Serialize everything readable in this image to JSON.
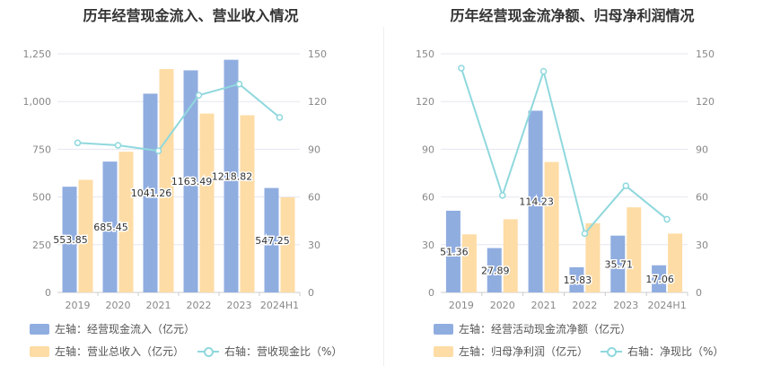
{
  "colors": {
    "bar_primary": "#90ade0",
    "bar_secondary": "#fedca5",
    "line": "#8fd8dd",
    "grid": "#e6e6f0"
  },
  "chart_data": [
    {
      "type": "bar",
      "title": "历年经营现金流入、营业收入情况",
      "categories": [
        "2019",
        "2020",
        "2021",
        "2022",
        "2023",
        "2024H1"
      ],
      "left_axis": {
        "ticks": [
          "0",
          "250",
          "500",
          "750",
          "1,000",
          "1,250"
        ],
        "ylim": [
          0,
          1250
        ]
      },
      "right_axis": {
        "ticks": [
          "0",
          "30",
          "60",
          "90",
          "120",
          "150"
        ],
        "ylim": [
          0,
          150
        ]
      },
      "series": [
        {
          "name": "左轴：经营现金流入（亿元）",
          "axis": "left",
          "kind": "bar",
          "values": [
            553.85,
            685.45,
            1041.26,
            1163.49,
            1218.82,
            547.25
          ],
          "labels": [
            "553.85",
            "685.45",
            "1041.26",
            "1163.49",
            "1218.82",
            "547.25"
          ]
        },
        {
          "name": "左轴：营业总收入（亿元）",
          "axis": "left",
          "kind": "bar",
          "values": [
            590,
            737,
            1170,
            937,
            928,
            498
          ]
        },
        {
          "name": "右轴：营收现金比（%）",
          "axis": "right",
          "kind": "line",
          "values": [
            94,
            92.5,
            89,
            124,
            131,
            110
          ]
        }
      ],
      "grid": true
    },
    {
      "type": "bar",
      "title": "历年经营现金流净额、归母净利润情况",
      "categories": [
        "2019",
        "2020",
        "2021",
        "2022",
        "2023",
        "2024H1"
      ],
      "left_axis": {
        "ticks": [
          "0",
          "30",
          "60",
          "90",
          "120",
          "150"
        ],
        "ylim": [
          0,
          150
        ]
      },
      "right_axis": {
        "ticks": [
          "0",
          "30",
          "60",
          "90",
          "120",
          "150"
        ],
        "ylim": [
          0,
          150
        ]
      },
      "series": [
        {
          "name": "左轴：经营活动现金流净额（亿元）",
          "axis": "left",
          "kind": "bar",
          "values": [
            51.36,
            27.89,
            114.23,
            15.83,
            35.71,
            17.06
          ],
          "labels": [
            "51.36",
            "27.89",
            "114.23",
            "15.83",
            "35.71",
            "17.06"
          ]
        },
        {
          "name": "左轴：归母净利润（亿元）",
          "axis": "left",
          "kind": "bar",
          "values": [
            36.5,
            46,
            82,
            43.5,
            53.5,
            37
          ]
        },
        {
          "name": "右轴：净现比（%）",
          "axis": "right",
          "kind": "line",
          "values": [
            141,
            61,
            139,
            37,
            67,
            46
          ]
        }
      ],
      "grid": true
    }
  ]
}
